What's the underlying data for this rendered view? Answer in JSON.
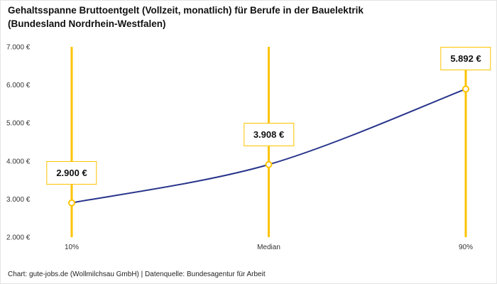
{
  "header": {
    "title_line1": "Gehaltsspanne Bruttoentgelt (Vollzeit, monatlich) für Berufe in der Bauelektrik",
    "title_line2": "(Bundesland Nordrhein-Westfalen)"
  },
  "footer": {
    "credit": "Chart: gute-jobs.de (Wollmilchsau GmbH) | Datenquelle: Bundesagentur für Arbeit"
  },
  "chart_data": {
    "type": "line",
    "title": "Gehaltsspanne Bruttoentgelt (Vollzeit, monatlich) für Berufe in der Bauelektrik (Bundesland Nordrhein-Westfalen)",
    "categories": [
      "10%",
      "Median",
      "90%"
    ],
    "values": [
      2900,
      3908,
      5892
    ],
    "value_labels": [
      "2.900 €",
      "3.908 €",
      "5.892 €"
    ],
    "y_ticks": [
      2000,
      3000,
      4000,
      5000,
      6000,
      7000
    ],
    "y_tick_labels": [
      "2.000 €",
      "3.000 €",
      "4.000 €",
      "5.000 €",
      "6.000 €",
      "7.000 €"
    ],
    "ylim": [
      2000,
      7000
    ],
    "xlabel": "",
    "ylabel": "",
    "grid": false,
    "legend": false,
    "colors": {
      "line": "#27348b",
      "marker_stroke": "#fdc300",
      "marker_fill": "#ffffff",
      "vline": "#fdc300",
      "label_border": "#fdc300",
      "tick_text": "#333333"
    }
  }
}
